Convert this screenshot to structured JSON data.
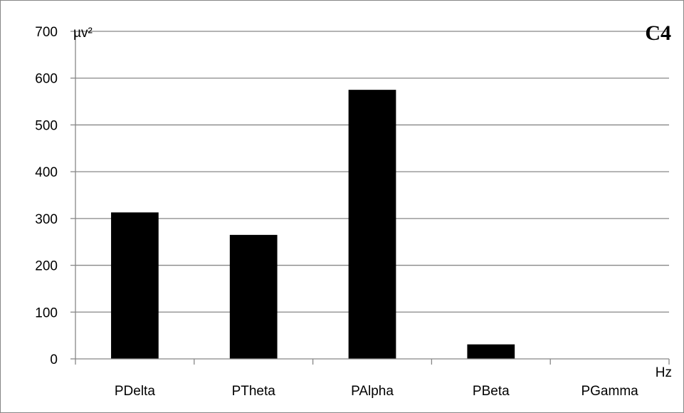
{
  "chart_data": {
    "type": "bar",
    "title": "C4",
    "xlabel": "Hz",
    "ylabel": "µv²",
    "categories": [
      "PDelta",
      "PTheta",
      "PAlpha",
      "PBeta",
      "PGamma"
    ],
    "values": [
      313,
      265,
      575,
      31,
      0
    ],
    "ylim": [
      0,
      700
    ],
    "yticks": [
      0,
      100,
      200,
      300,
      400,
      500,
      600,
      700
    ],
    "grid": "horizontal",
    "bar_color": "#000000",
    "gridline_color": "#878787",
    "legend": "none"
  }
}
